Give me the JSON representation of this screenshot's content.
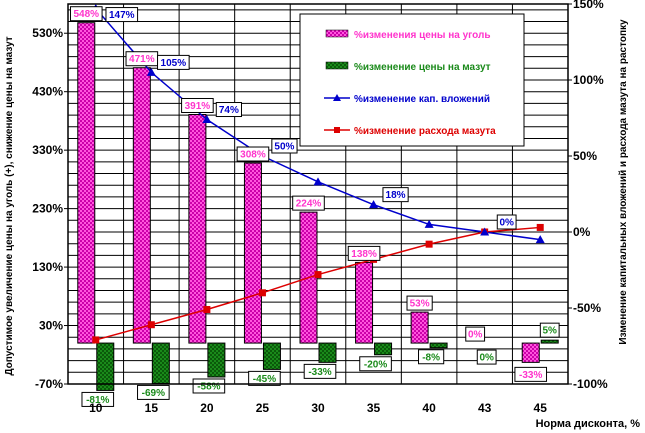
{
  "chart_data": {
    "type": "bar",
    "categories": [
      "10",
      "15",
      "20",
      "25",
      "30",
      "35",
      "40",
      "43",
      "45"
    ],
    "xlabel": "Норма дисконта, %",
    "ylabel_left": "Допустимое увеличение цены на уголь (+), снижение цены на мазут",
    "ylabel_right": "Изменение капитальных вложений и расхода мазута на растопку",
    "left_axis": {
      "ylim": [
        -70,
        580
      ],
      "ticks": [
        -70,
        30,
        130,
        230,
        330,
        430,
        530
      ],
      "tick_labels": [
        "-70%",
        "30%",
        "130%",
        "230%",
        "330%",
        "430%",
        "530%"
      ]
    },
    "right_axis": {
      "ylim": [
        -100,
        150
      ],
      "ticks": [
        -100,
        -50,
        0,
        50,
        100,
        150
      ],
      "tick_labels": [
        "-100%",
        "-50%",
        "0%",
        "50%",
        "100%",
        "150%"
      ]
    },
    "grid": true,
    "legend_position": "top-right",
    "colors": {
      "coal": "#ff33cc",
      "coal_label": "#ff33cc",
      "mazut": "#1a8a1a",
      "mazut_dark": "#0a5a0a",
      "mazut_label": "#1a8a1a",
      "capex": "#0000cc",
      "fuel": "#dd0000",
      "grid": "#000000"
    },
    "series": [
      {
        "name": "%изменения цены на уголь",
        "type": "bar",
        "axis": "left",
        "values": [
          548,
          471,
          391,
          308,
          224,
          138,
          53,
          0,
          -33
        ],
        "labels": [
          "548%",
          "471%",
          "391%",
          "308%",
          "224%",
          "138%",
          "53%",
          "0%",
          "-33%"
        ]
      },
      {
        "name": "%изменение цены на мазут",
        "type": "bar",
        "axis": "left",
        "values": [
          -81,
          -69,
          -58,
          -45,
          -33,
          -20,
          -8,
          0,
          5
        ],
        "labels": [
          "-81%",
          "-69%",
          "-58%",
          "-45%",
          "-33%",
          "-20%",
          "-8%",
          "0%",
          "5%"
        ]
      },
      {
        "name": "%изменение кап. вложений",
        "type": "line",
        "axis": "right",
        "values": [
          147,
          105,
          74,
          50,
          33,
          18,
          5,
          0,
          -5
        ],
        "labels": [
          "147%",
          "105%",
          "74%",
          "50%",
          "",
          "18%",
          "",
          "0%",
          ""
        ]
      },
      {
        "name": "%изменение расхода мазута",
        "type": "line",
        "axis": "right",
        "values": [
          -71,
          -61,
          -51,
          -40,
          -28,
          -18,
          -8,
          0,
          3
        ],
        "labels": [
          "",
          "",
          "",
          "",
          "",
          "",
          "",
          "",
          ""
        ]
      }
    ]
  }
}
